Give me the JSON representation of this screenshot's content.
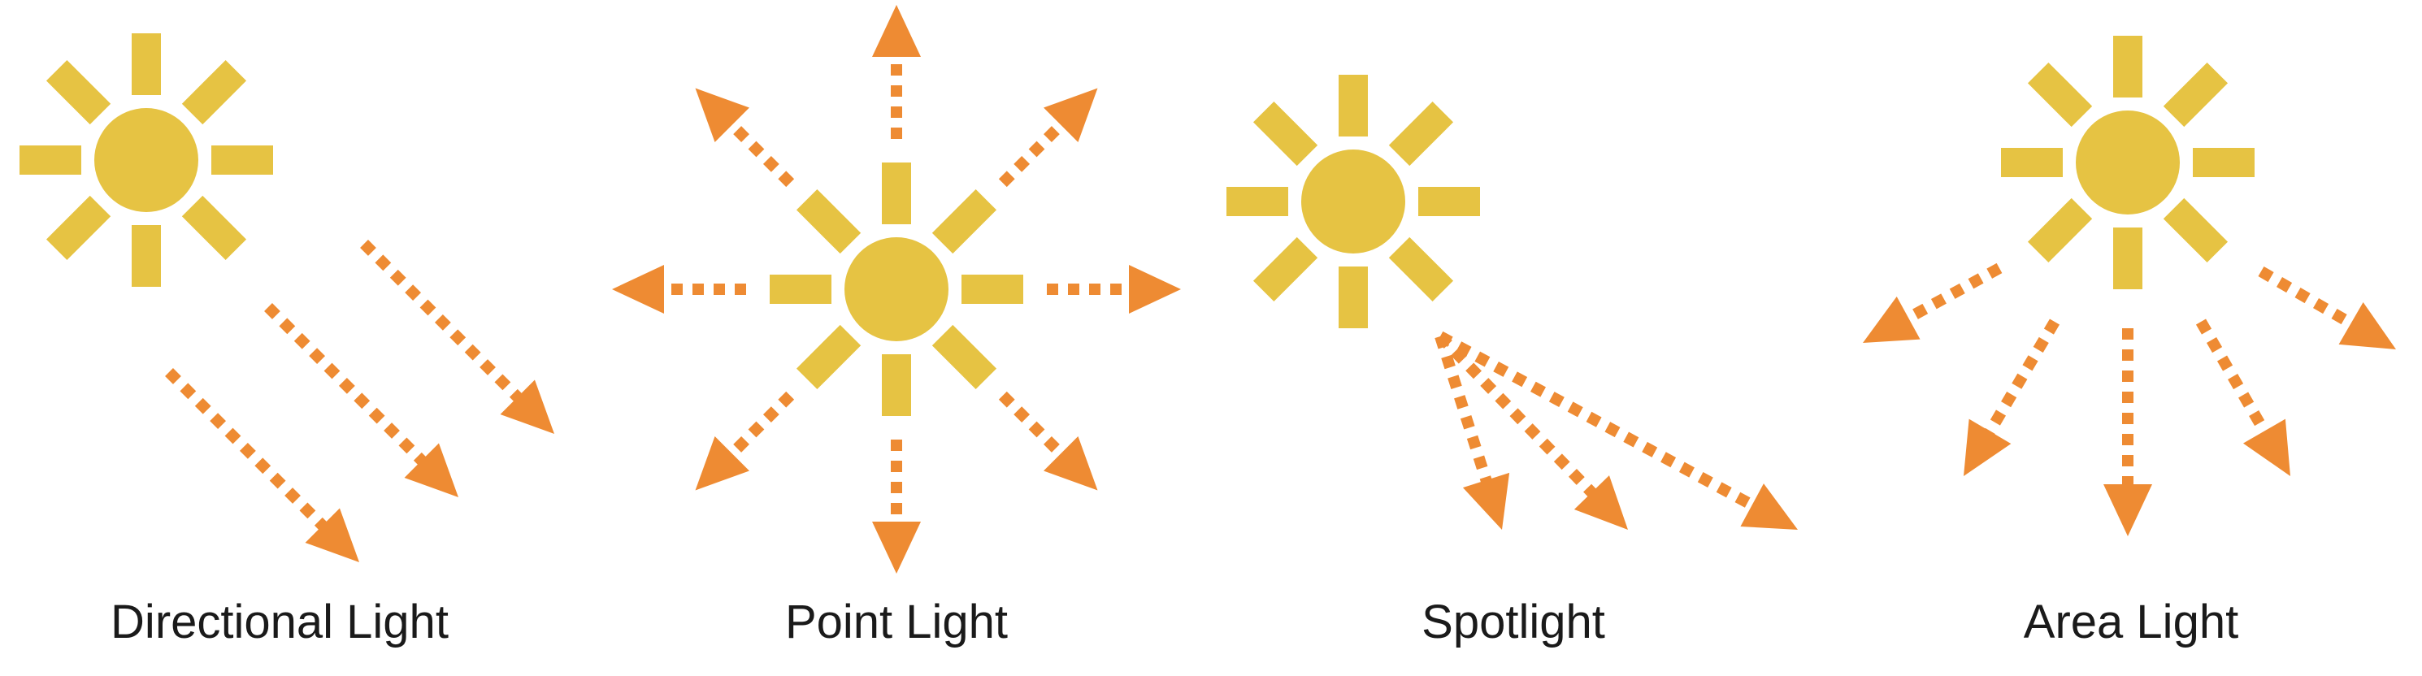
{
  "panels": [
    {
      "id": "directional",
      "label": "Directional Light"
    },
    {
      "id": "point",
      "label": "Point Light"
    },
    {
      "id": "spot",
      "label": "Spotlight"
    },
    {
      "id": "area",
      "label": "Area Light"
    }
  ],
  "colors": {
    "sun": "#e6c343",
    "ray": "#ee8b33",
    "label": "#1a1a1a",
    "background": "#ffffff"
  },
  "icons": {
    "light_source": "sun-icon",
    "ray": "dotted-arrow-icon"
  }
}
